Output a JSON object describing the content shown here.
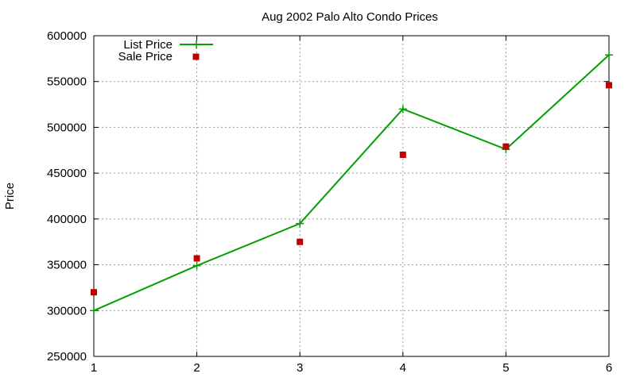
{
  "chart_data": {
    "type": "line",
    "title": "Aug 2002 Palo Alto Condo Prices",
    "xlabel": "",
    "ylabel": "Price",
    "xlim": [
      1,
      6
    ],
    "ylim": [
      250000,
      600000
    ],
    "x_ticks": [
      "1",
      "2",
      "3",
      "4",
      "5",
      "6"
    ],
    "y_ticks": [
      "250000",
      "300000",
      "350000",
      "400000",
      "450000",
      "500000",
      "550000",
      "600000"
    ],
    "grid": true,
    "legend_position": "top-left",
    "series": [
      {
        "name": "List Price",
        "style": "line-with-plus-markers",
        "color": "#00a000",
        "x": [
          1,
          2,
          3,
          4,
          5,
          6
        ],
        "y": [
          300000,
          349000,
          395000,
          520000,
          476000,
          579000
        ]
      },
      {
        "name": "Sale Price",
        "style": "square-points",
        "color": "#c00000",
        "x": [
          1,
          2,
          3,
          4,
          5,
          6
        ],
        "y": [
          320000,
          357000,
          375000,
          470000,
          479000,
          546000
        ]
      }
    ]
  }
}
